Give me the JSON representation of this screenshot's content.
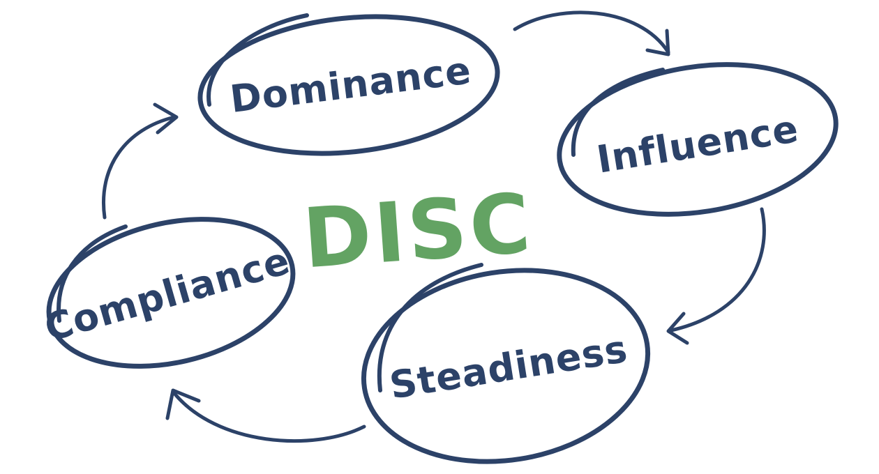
{
  "diagram": {
    "center_label": "DISC",
    "nodes": [
      {
        "id": "dominance",
        "label": "Dominance"
      },
      {
        "id": "influence",
        "label": "Influence"
      },
      {
        "id": "steadiness",
        "label": "Steadiness"
      },
      {
        "id": "compliance",
        "label": "Compliance"
      }
    ],
    "edges": [
      {
        "from": "dominance",
        "to": "influence"
      },
      {
        "from": "influence",
        "to": "steadiness"
      },
      {
        "from": "steadiness",
        "to": "compliance"
      },
      {
        "from": "compliance",
        "to": "dominance"
      }
    ],
    "colors": {
      "ink": "#2c4268",
      "accent": "#63a363",
      "background": "#ffffff"
    }
  }
}
